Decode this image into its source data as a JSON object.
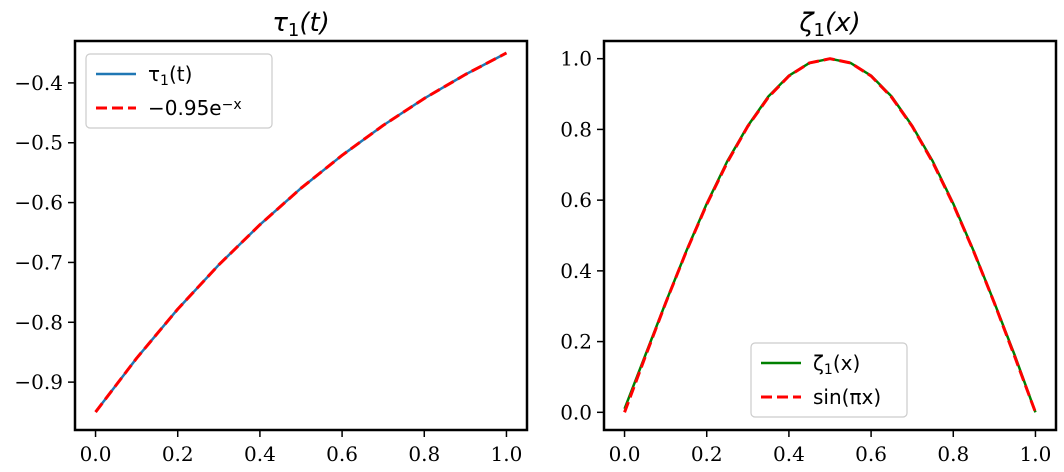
{
  "chart_data": [
    {
      "type": "line",
      "title": "τ₁(t)",
      "xlim": [
        -0.05,
        1.05
      ],
      "ylim": [
        -0.98,
        -0.33
      ],
      "xticks": [
        0.0,
        0.2,
        0.4,
        0.6,
        0.8,
        1.0
      ],
      "xtick_labels": [
        "0.0",
        "0.2",
        "0.4",
        "0.6",
        "0.8",
        "1.0"
      ],
      "yticks": [
        -0.9,
        -0.8,
        -0.7,
        -0.6,
        -0.5,
        -0.4
      ],
      "ytick_labels": [
        "−0.9",
        "−0.8",
        "−0.7",
        "−0.6",
        "−0.5",
        "−0.4"
      ],
      "grid": false,
      "legend_position": "top-left",
      "series": [
        {
          "name": "τ₁(t)",
          "color": "#1f77b4",
          "style": "solid",
          "x": [
            0.0,
            0.1,
            0.2,
            0.3,
            0.4,
            0.5,
            0.6,
            0.7,
            0.8,
            0.9,
            1.0
          ],
          "y": [
            -0.95,
            -0.86,
            -0.778,
            -0.704,
            -0.637,
            -0.576,
            -0.521,
            -0.471,
            -0.426,
            -0.386,
            -0.35
          ]
        },
        {
          "name": "−0.95e⁻ˣ",
          "color": "#ff0000",
          "style": "dashed",
          "x": [
            0.0,
            0.1,
            0.2,
            0.3,
            0.4,
            0.5,
            0.6,
            0.7,
            0.8,
            0.9,
            1.0
          ],
          "y": [
            -0.95,
            -0.86,
            -0.778,
            -0.704,
            -0.637,
            -0.576,
            -0.521,
            -0.471,
            -0.426,
            -0.386,
            -0.35
          ]
        }
      ]
    },
    {
      "type": "line",
      "title": "ζ₁(x)",
      "xlim": [
        -0.05,
        1.05
      ],
      "ylim": [
        -0.05,
        1.05
      ],
      "xticks": [
        0.0,
        0.2,
        0.4,
        0.6,
        0.8,
        1.0
      ],
      "xtick_labels": [
        "0.0",
        "0.2",
        "0.4",
        "0.6",
        "0.8",
        "1.0"
      ],
      "yticks": [
        0.0,
        0.2,
        0.4,
        0.6,
        0.8,
        1.0
      ],
      "ytick_labels": [
        "0.0",
        "0.2",
        "0.4",
        "0.6",
        "0.8",
        "1.0"
      ],
      "grid": false,
      "legend_position": "bottom-center",
      "series": [
        {
          "name": "ζ₁(x)",
          "color": "#008000",
          "style": "solid",
          "x": [
            0.0,
            0.05,
            0.1,
            0.15,
            0.2,
            0.25,
            0.3,
            0.35,
            0.4,
            0.45,
            0.5,
            0.55,
            0.6,
            0.65,
            0.7,
            0.75,
            0.8,
            0.85,
            0.9,
            0.95,
            1.0
          ],
          "y": [
            0.01,
            0.16,
            0.31,
            0.455,
            0.59,
            0.71,
            0.81,
            0.893,
            0.952,
            0.988,
            1.0,
            0.988,
            0.952,
            0.893,
            0.81,
            0.71,
            0.59,
            0.455,
            0.31,
            0.16,
            0.0
          ]
        },
        {
          "name": "sin(πx)",
          "color": "#ff0000",
          "style": "dashed",
          "x": [
            0.0,
            0.05,
            0.1,
            0.15,
            0.2,
            0.25,
            0.3,
            0.35,
            0.4,
            0.45,
            0.5,
            0.55,
            0.6,
            0.65,
            0.7,
            0.75,
            0.8,
            0.85,
            0.9,
            0.95,
            1.0
          ],
          "y": [
            0.0,
            0.156,
            0.309,
            0.454,
            0.588,
            0.707,
            0.809,
            0.891,
            0.951,
            0.988,
            1.0,
            0.988,
            0.951,
            0.891,
            0.809,
            0.707,
            0.588,
            0.454,
            0.309,
            0.156,
            0.0
          ]
        }
      ]
    }
  ]
}
